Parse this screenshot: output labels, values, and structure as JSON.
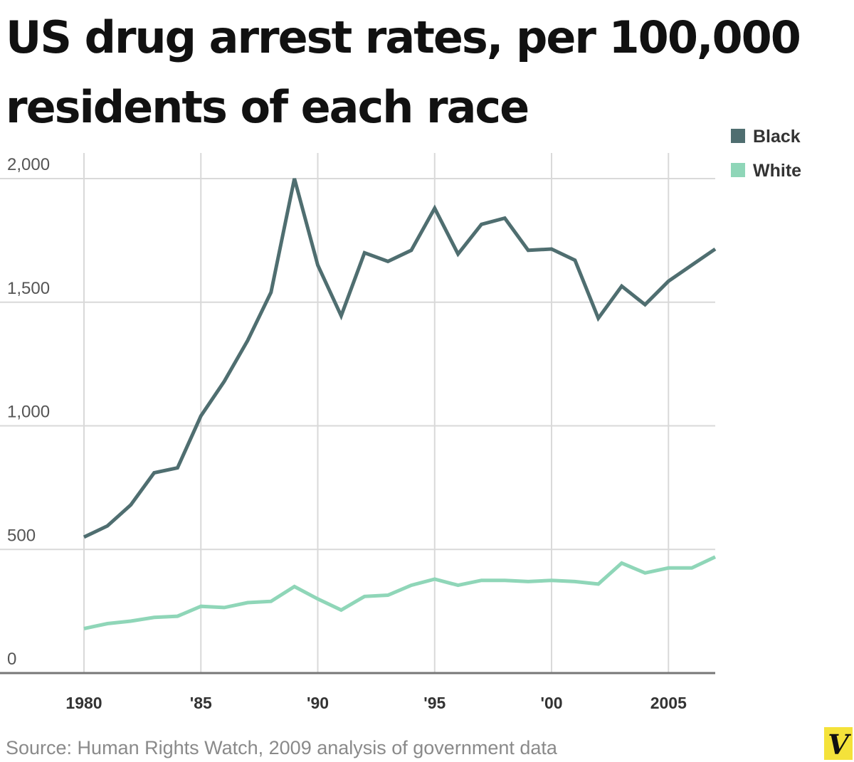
{
  "chart_data": {
    "type": "line",
    "title": "US drug arrest rates, per 100,000 residents of each race",
    "xlabel": "",
    "ylabel": "",
    "x": [
      1980,
      1981,
      1982,
      1983,
      1984,
      1985,
      1986,
      1987,
      1988,
      1989,
      1990,
      1991,
      1992,
      1993,
      1994,
      1995,
      1996,
      1997,
      1998,
      1999,
      2000,
      2001,
      2002,
      2003,
      2004,
      2005,
      2006,
      2007
    ],
    "xlim": [
      1980,
      2007
    ],
    "ylim": [
      0,
      2000
    ],
    "yticks": [
      0,
      500,
      1000,
      1500,
      2000
    ],
    "ytick_labels": [
      "0",
      "500",
      "1,000",
      "1,500",
      "2,000"
    ],
    "xticks": [
      1980,
      1985,
      1990,
      1995,
      2000,
      2005
    ],
    "xtick_labels": [
      "1980",
      "'85",
      "'90",
      "'95",
      "'00",
      "2005"
    ],
    "grid": true,
    "legend_position": "top-right",
    "series": [
      {
        "name": "Black",
        "color": "#4f6e70",
        "values": [
          550,
          595,
          680,
          810,
          830,
          1040,
          1180,
          1345,
          1540,
          2000,
          1650,
          1445,
          1700,
          1665,
          1710,
          1880,
          1695,
          1815,
          1840,
          1710,
          1715,
          1670,
          1435,
          1565,
          1490,
          1585,
          1650,
          1715
        ]
      },
      {
        "name": "White",
        "color": "#8fd6b8",
        "values": [
          180,
          200,
          210,
          225,
          230,
          270,
          265,
          285,
          290,
          350,
          300,
          255,
          310,
          315,
          355,
          380,
          355,
          375,
          375,
          370,
          375,
          370,
          360,
          445,
          405,
          425,
          425,
          470
        ]
      }
    ]
  },
  "source": "Source: Human Rights Watch, 2009 analysis of government data",
  "logo_letter": "V"
}
